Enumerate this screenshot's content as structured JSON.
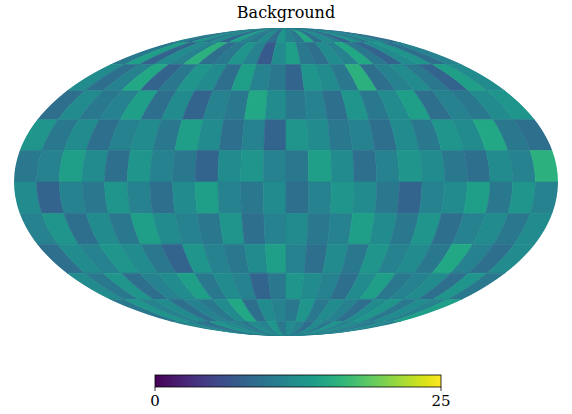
{
  "chart_data": {
    "type": "heatmap",
    "title": "Background",
    "color": "viridis",
    "tick_labels": false,
    "cells": [
      [
        11,
        9,
        13,
        10,
        12,
        8,
        14,
        11,
        10,
        12,
        9,
        13,
        11,
        10,
        15,
        9,
        12,
        11,
        8,
        13,
        10,
        12,
        11,
        9
      ],
      [
        10,
        14,
        8,
        12,
        11,
        16,
        9,
        10,
        13,
        11,
        7,
        12,
        14,
        10,
        9,
        12,
        11,
        15,
        10,
        8,
        12,
        13,
        9,
        11
      ],
      [
        12,
        9,
        11,
        15,
        8,
        10,
        13,
        12,
        9,
        14,
        11,
        10,
        8,
        13,
        12,
        10,
        16,
        9,
        11,
        12,
        10,
        8,
        14,
        12
      ],
      [
        9,
        12,
        10,
        11,
        14,
        9,
        12,
        8,
        11,
        10,
        15,
        12,
        10,
        11,
        9,
        13,
        10,
        12,
        14,
        9,
        11,
        10,
        12,
        13
      ],
      [
        13,
        10,
        12,
        9,
        11,
        12,
        10,
        14,
        12,
        9,
        11,
        8,
        13,
        12,
        10,
        11,
        9,
        12,
        10,
        13,
        12,
        15,
        10,
        9
      ],
      [
        10,
        11,
        14,
        12,
        9,
        13,
        11,
        10,
        8,
        12,
        13,
        11,
        10,
        14,
        12,
        9,
        11,
        13,
        12,
        10,
        9,
        12,
        11,
        16
      ],
      [
        12,
        8,
        11,
        10,
        13,
        11,
        9,
        12,
        14,
        11,
        10,
        12,
        9,
        11,
        13,
        12,
        10,
        8,
        11,
        12,
        14,
        10,
        13,
        11
      ],
      [
        11,
        13,
        9,
        12,
        10,
        14,
        12,
        11,
        10,
        13,
        9,
        11,
        12,
        10,
        11,
        14,
        12,
        10,
        13,
        9,
        11,
        12,
        10,
        12
      ],
      [
        9,
        12,
        11,
        13,
        12,
        10,
        8,
        13,
        11,
        10,
        12,
        14,
        11,
        9,
        12,
        10,
        13,
        11,
        12,
        10,
        15,
        11,
        9,
        12
      ],
      [
        12,
        10,
        13,
        9,
        11,
        12,
        14,
        10,
        12,
        11,
        8,
        10,
        13,
        12,
        11,
        9,
        12,
        14,
        10,
        11,
        12,
        9,
        13,
        10
      ],
      [
        10,
        13,
        11,
        12,
        9,
        11,
        10,
        12,
        15,
        9,
        12,
        11,
        10,
        13,
        10,
        12,
        11,
        9,
        12,
        13,
        10,
        12,
        11,
        14
      ],
      [
        11,
        12,
        10,
        9,
        13,
        12,
        11,
        10,
        12,
        11,
        13,
        10,
        12,
        11,
        9,
        12,
        10,
        13,
        11,
        12,
        11,
        10,
        12,
        11
      ]
    ],
    "colorbar": {
      "range": [
        0,
        25
      ],
      "ticks": [
        0,
        25
      ]
    }
  }
}
